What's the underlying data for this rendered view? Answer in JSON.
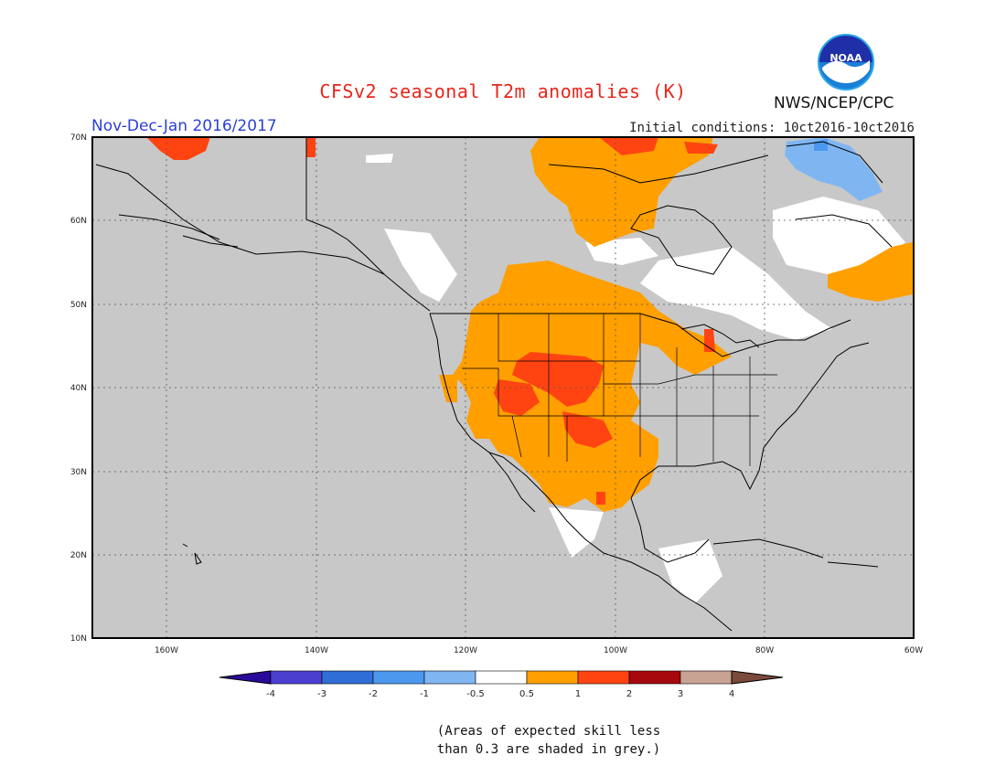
{
  "header": {
    "title": "CFSv2 seasonal T2m anomalies (K)",
    "period": "Nov-Dec-Jan 2016/2017",
    "initial_conditions": "Initial conditions: 10ct2016-10ct2016",
    "agency": "NWS/NCEP/CPC",
    "logo_text": "NOAA"
  },
  "map": {
    "lat_labels": [
      "70N",
      "60N",
      "50N",
      "40N",
      "30N",
      "20N",
      "10N"
    ],
    "lon_labels": [
      "160W",
      "140W",
      "120W",
      "100W",
      "80W",
      "60W"
    ],
    "land_color": "#c8c8c8",
    "border_color": "#000000",
    "grid_style": "dotted"
  },
  "colorbar": {
    "labels": [
      "-4",
      "-3",
      "-2",
      "-1",
      "-0.5",
      "0.5",
      "1",
      "2",
      "3",
      "4"
    ],
    "colors": [
      "#2a0a9a",
      "#4b3fd0",
      "#2f6ed6",
      "#4c98ee",
      "#7fb6f2",
      "#ffffff",
      "#ff9f00",
      "#ff4412",
      "#a5080d",
      "#c8a294",
      "#7a4a3a"
    ]
  },
  "footnote": {
    "text": "(Areas of expected skill less\nthan 0.3 are shaded in grey.)"
  }
}
